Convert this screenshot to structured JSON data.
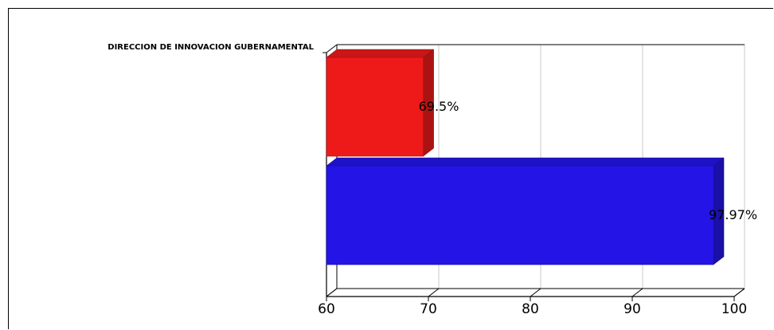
{
  "chart_data": {
    "type": "bar",
    "orientation": "horizontal",
    "three_d": true,
    "categories": [
      "DIRECCION DE INNOVACION GUBERNAMENTAL"
    ],
    "series": [
      {
        "values": [
          69.5
        ],
        "color": "#ee1a1a",
        "label": "69.5%"
      },
      {
        "values": [
          97.97
        ],
        "color": "#2415e6",
        "label": "97.97%"
      }
    ],
    "xlim": [
      60,
      100
    ],
    "xticks": [
      "60",
      "70",
      "80",
      "90",
      "100"
    ],
    "grid": true
  }
}
